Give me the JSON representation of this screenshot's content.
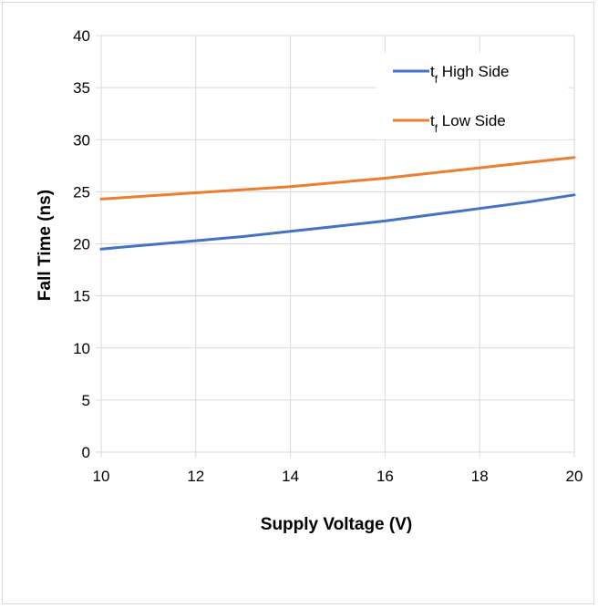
{
  "chart_data": {
    "type": "line",
    "title": "",
    "xlabel": "Supply Voltage (V)",
    "ylabel": "Fall Time (ns)",
    "xlim": [
      10,
      20
    ],
    "ylim": [
      0,
      40
    ],
    "xticks": [
      10,
      12,
      14,
      16,
      18,
      20
    ],
    "yticks": [
      0,
      5,
      10,
      15,
      20,
      25,
      30,
      35,
      40
    ],
    "grid": true,
    "legend_position": "top-right",
    "x": [
      10,
      11,
      12,
      13,
      14,
      15,
      16,
      17,
      18,
      19,
      20
    ],
    "series": [
      {
        "name_main": "t",
        "name_sub": "f",
        "name_rest": " High Side",
        "color": "#4472c4",
        "values": [
          19.5,
          19.9,
          20.3,
          20.7,
          21.2,
          21.7,
          22.2,
          22.8,
          23.4,
          24.0,
          24.7
        ]
      },
      {
        "name_main": "t",
        "name_sub": "f",
        "name_rest": " Low Side",
        "color": "#ed7d31",
        "values": [
          24.3,
          24.6,
          24.9,
          25.2,
          25.5,
          25.9,
          26.3,
          26.8,
          27.3,
          27.8,
          28.3
        ]
      }
    ]
  }
}
